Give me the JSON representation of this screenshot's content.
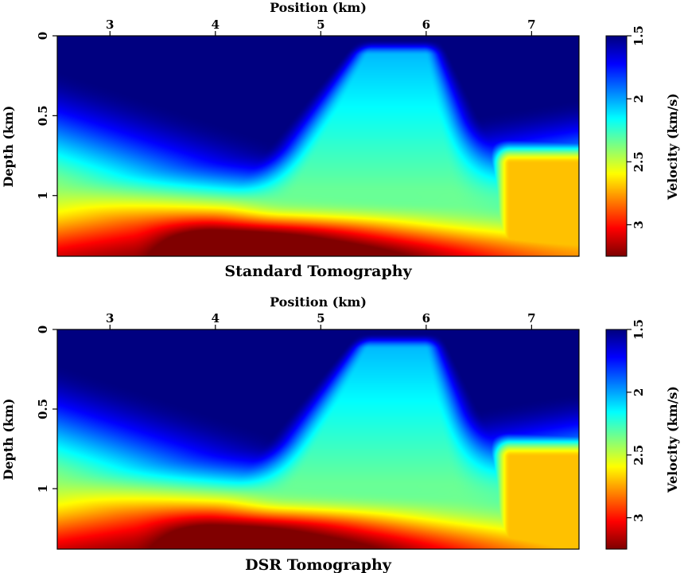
{
  "figure": {
    "panels": [
      {
        "caption": "Standard Tomography"
      },
      {
        "caption": "DSR Tomography"
      }
    ]
  },
  "chart_data": [
    {
      "type": "heatmap",
      "title": "Standard Tomography",
      "xlabel": "Position (km)",
      "ylabel": "Depth (km)",
      "xlim": [
        2.5,
        7.45
      ],
      "ylim": [
        0,
        1.38
      ],
      "y_inverted": true,
      "x_ticks": [
        3,
        4,
        5,
        6,
        7
      ],
      "y_ticks": [
        0,
        0.5,
        1
      ],
      "y_tick_labels": [
        "0",
        "0.5",
        "1"
      ],
      "colorbar": {
        "label": "Velocity (km/s)",
        "range": [
          1.5,
          3.25
        ],
        "ticks": [
          1.5,
          2,
          2.5,
          3
        ],
        "tick_labels": [
          "1.5",
          "2",
          "2.5",
          "3"
        ],
        "colormap": "jet_reversed"
      },
      "features": {
        "low_velocity_top": 1.5,
        "high_velocity_bottom": 3.1,
        "salt_dome_peak_x": 5.9,
        "salt_dome_peak_depth": 0.05
      }
    },
    {
      "type": "heatmap",
      "title": "DSR Tomography",
      "xlabel": "Position (km)",
      "ylabel": "Depth (km)",
      "xlim": [
        2.5,
        7.45
      ],
      "ylim": [
        0,
        1.38
      ],
      "y_inverted": true,
      "x_ticks": [
        3,
        4,
        5,
        6,
        7
      ],
      "y_ticks": [
        0,
        0.5,
        1
      ],
      "y_tick_labels": [
        "0",
        "0.5",
        "1"
      ],
      "colorbar": {
        "label": "Velocity (km/s)",
        "range": [
          1.5,
          3.25
        ],
        "ticks": [
          1.5,
          2,
          2.5,
          3
        ],
        "tick_labels": [
          "1.5",
          "2",
          "2.5",
          "3"
        ],
        "colormap": "jet_reversed"
      },
      "features": {
        "low_velocity_top": 1.5,
        "high_velocity_bottom": 3.05,
        "salt_dome_peak_x": 5.8,
        "salt_dome_peak_depth": 0.05
      }
    }
  ]
}
